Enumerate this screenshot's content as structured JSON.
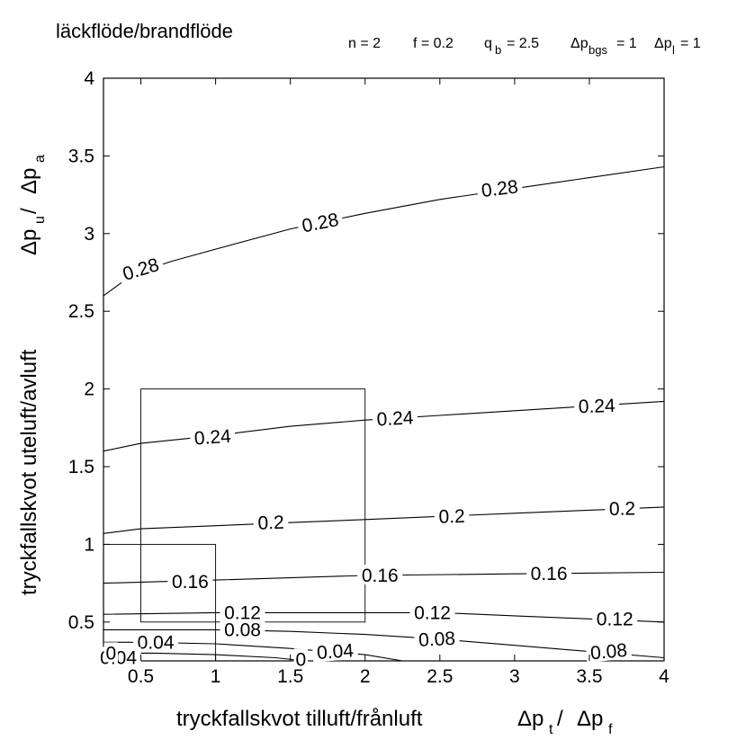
{
  "chart_data": {
    "type": "line",
    "title": "läckflöde/brandflöde",
    "parameters": {
      "n": "n = 2",
      "f": "f = 0.2",
      "qb": {
        "base": "q",
        "sub": "b",
        "value": "= 2.5"
      },
      "dp_bgs": {
        "base": "Δp",
        "sub": "bgs",
        "value": "= 1"
      },
      "dp_l": {
        "base": "Δp",
        "sub": "l",
        "value": "= 1"
      }
    },
    "xlabel": {
      "text": "tryckfallskvot tilluft/frånluft",
      "sym1": "Δp",
      "sub1": "t",
      "sep": "/",
      "sym2": "Δp",
      "sub2": "f"
    },
    "ylabel": {
      "text": "tryckfallskvot uteluft/avluft",
      "sym1": "Δp",
      "sub1": "u",
      "sep": "/",
      "sym2": "Δp",
      "sub2": "a"
    },
    "xlim": [
      0.25,
      4
    ],
    "ylim": [
      0.25,
      4
    ],
    "xticks": [
      "0.5",
      "1",
      "1.5",
      "2",
      "2.5",
      "3",
      "3.5",
      "4"
    ],
    "yticks": [
      "0.5",
      "1",
      "1.5",
      "2",
      "2.5",
      "3",
      "3.5",
      "4"
    ],
    "grid": false,
    "series": [
      {
        "level": "0.28",
        "x": [
          0.25,
          0.45,
          0.7,
          1.0,
          1.5,
          2.0,
          2.5,
          3.0,
          3.5,
          4.0
        ],
        "y": [
          2.6,
          2.74,
          2.82,
          2.9,
          3.03,
          3.13,
          3.22,
          3.29,
          3.36,
          3.43
        ]
      },
      {
        "level": "0.24",
        "x": [
          0.25,
          0.5,
          1.0,
          1.5,
          2.0,
          2.5,
          3.0,
          3.5,
          4.0
        ],
        "y": [
          1.6,
          1.65,
          1.7,
          1.76,
          1.8,
          1.83,
          1.86,
          1.89,
          1.92
        ]
      },
      {
        "level": "0.2",
        "x": [
          0.25,
          0.5,
          1.0,
          1.5,
          2.0,
          2.5,
          3.0,
          3.5,
          4.0
        ],
        "y": [
          1.07,
          1.1,
          1.12,
          1.14,
          1.16,
          1.18,
          1.2,
          1.22,
          1.24
        ]
      },
      {
        "level": "0.16",
        "x": [
          0.25,
          1.0,
          2.0,
          3.0,
          4.0
        ],
        "y": [
          0.75,
          0.77,
          0.8,
          0.81,
          0.82
        ]
      },
      {
        "level": "0.12",
        "x": [
          0.25,
          1.0,
          2.0,
          2.5,
          3.0,
          3.5,
          4.0
        ],
        "y": [
          0.55,
          0.56,
          0.56,
          0.56,
          0.54,
          0.52,
          0.5
        ]
      },
      {
        "level": "0.08",
        "x": [
          0.25,
          1.0,
          1.5,
          2.0,
          2.5,
          3.0,
          3.5,
          4.0
        ],
        "y": [
          0.45,
          0.45,
          0.44,
          0.42,
          0.39,
          0.35,
          0.31,
          0.27
        ]
      },
      {
        "level": "0.04",
        "x": [
          0.25,
          0.5,
          1.0,
          1.5,
          2.0,
          2.25
        ],
        "y": [
          0.37,
          0.37,
          0.36,
          0.33,
          0.29,
          0.25
        ]
      },
      {
        "level": "0",
        "x": [
          0.25,
          0.6,
          1.0,
          1.4,
          1.6
        ],
        "y": [
          0.3,
          0.3,
          0.29,
          0.27,
          0.25
        ]
      }
    ],
    "contour_labels": [
      {
        "text": "0.28",
        "x": 0.5,
        "y": 2.77,
        "rot": -17
      },
      {
        "text": "0.28",
        "x": 1.7,
        "y": 3.07,
        "rot": -11
      },
      {
        "text": "0.28",
        "x": 2.9,
        "y": 3.29,
        "rot": -7
      },
      {
        "text": "0.24",
        "x": 0.98,
        "y": 1.69,
        "rot": -4
      },
      {
        "text": "0.24",
        "x": 2.2,
        "y": 1.81,
        "rot": -3
      },
      {
        "text": "0.24",
        "x": 3.55,
        "y": 1.89,
        "rot": -2
      },
      {
        "text": "0.2",
        "x": 1.37,
        "y": 1.14,
        "rot": -2
      },
      {
        "text": "0.2",
        "x": 2.58,
        "y": 1.18,
        "rot": -2
      },
      {
        "text": "0.2",
        "x": 3.72,
        "y": 1.23,
        "rot": -1
      },
      {
        "text": "0.16",
        "x": 0.83,
        "y": 0.76,
        "rot": 0
      },
      {
        "text": "0.16",
        "x": 2.1,
        "y": 0.8,
        "rot": 0
      },
      {
        "text": "0.16",
        "x": 3.23,
        "y": 0.81,
        "rot": 0
      },
      {
        "text": "0.12",
        "x": 1.18,
        "y": 0.56,
        "rot": 0
      },
      {
        "text": "0.12",
        "x": 2.45,
        "y": 0.56,
        "rot": 0
      },
      {
        "text": "0.12",
        "x": 3.67,
        "y": 0.52,
        "rot": 0
      },
      {
        "text": "0.08",
        "x": 1.18,
        "y": 0.45,
        "rot": 0
      },
      {
        "text": "0.08",
        "x": 2.48,
        "y": 0.39,
        "rot": -3
      },
      {
        "text": "0.08",
        "x": 3.63,
        "y": 0.31,
        "rot": -5
      },
      {
        "text": "0.04",
        "x": 0.6,
        "y": 0.37,
        "rot": 0
      },
      {
        "text": "0.04",
        "x": 0.35,
        "y": 0.27,
        "rot": 0
      },
      {
        "text": "0.04",
        "x": 1.8,
        "y": 0.31,
        "rot": -4
      },
      {
        "text": "0",
        "x": 0.3,
        "y": 0.3,
        "rot": 0
      },
      {
        "text": "0",
        "x": 1.57,
        "y": 0.26,
        "rot": 0
      }
    ],
    "boxes": [
      {
        "x0": 0.25,
        "y0": 0.25,
        "x1": 1.0,
        "y1": 1.0
      },
      {
        "x0": 0.5,
        "y0": 0.5,
        "x1": 2.0,
        "y1": 2.0
      }
    ]
  }
}
